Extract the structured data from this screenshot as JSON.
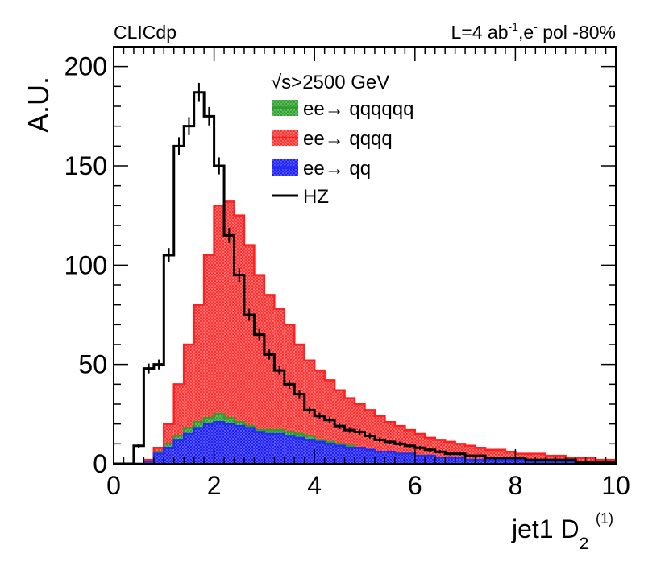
{
  "header": {
    "left": "CLICdp",
    "right_prefix": "L=4 ab",
    "right_lumi_sup": "-1",
    "right_mid": ",e",
    "right_e_sup": "-",
    "right_suffix": " pol -80%"
  },
  "legend": {
    "title_root": "√s",
    "title_rest": ">2500 GeV",
    "entries": [
      {
        "label": "ee→ qqqqqq",
        "color": "#2ca02c"
      },
      {
        "label": "ee→ qqqq",
        "color": "#ff2020"
      },
      {
        "label": "ee→ qq",
        "color": "#1f2ff0"
      },
      {
        "label": "HZ",
        "color": "#000000"
      }
    ]
  },
  "axes": {
    "ylabel": "A.U.",
    "xlabel_main": "jet1 D",
    "xlabel_sub": "2",
    "xlabel_sup": "(1)",
    "x_ticks": [
      "0",
      "2",
      "4",
      "6",
      "8",
      "10"
    ],
    "y_ticks": [
      "0",
      "50",
      "100",
      "150",
      "200"
    ]
  },
  "chart_data": {
    "type": "histogram",
    "title": "",
    "xlabel": "jet1 D2(1)",
    "ylabel": "A.U.",
    "xlim": [
      0,
      10
    ],
    "ylim": [
      0,
      210
    ],
    "bin_width": 0.2,
    "x_start": 0,
    "colors": {
      "qqqqqq": "#2ca02c",
      "qqqq": "#ff2020",
      "qq": "#1f2ff0",
      "HZ": "#000000"
    },
    "series": [
      {
        "name": "ee→ qq",
        "role": "stack-bottom",
        "values": [
          0,
          0,
          0,
          1,
          5,
          8,
          12,
          15,
          18,
          20,
          21,
          20,
          19,
          18,
          16,
          15,
          15,
          14,
          13,
          12,
          11,
          10,
          9,
          8,
          8,
          7,
          6,
          6,
          5,
          5,
          4,
          4,
          3,
          3,
          3,
          2,
          2,
          2,
          2,
          2,
          2,
          1,
          1,
          1,
          1,
          1,
          1,
          1,
          1,
          1
        ]
      },
      {
        "name": "ee→ qqqq",
        "role": "stack-total",
        "values": [
          0,
          0,
          0,
          2,
          8,
          20,
          40,
          60,
          80,
          105,
          130,
          132,
          125,
          110,
          95,
          85,
          78,
          70,
          60,
          52,
          47,
          42,
          37,
          33,
          30,
          27,
          24,
          21,
          19,
          17,
          15,
          13,
          12,
          11,
          10,
          9,
          8,
          7,
          7,
          6,
          5,
          5,
          5,
          4,
          4,
          3,
          3,
          3,
          2,
          2
        ]
      },
      {
        "name": "ee→ qqqqqq",
        "role": "stack-middle-top",
        "values": [
          0,
          0,
          0,
          1,
          6,
          10,
          14,
          18,
          21,
          23,
          25,
          23,
          21,
          19,
          17,
          17,
          17,
          16,
          15,
          14,
          12,
          11,
          10,
          9,
          8,
          7,
          6,
          6,
          5,
          5,
          4,
          4,
          3,
          3,
          3,
          2,
          2,
          2,
          2,
          2,
          2,
          1,
          1,
          1,
          1,
          1,
          1,
          1,
          1,
          1
        ]
      },
      {
        "name": "HZ",
        "role": "line",
        "values": [
          0,
          0,
          9,
          48,
          50,
          105,
          160,
          170,
          187,
          175,
          150,
          115,
          95,
          75,
          65,
          55,
          47,
          40,
          35,
          27,
          24,
          22,
          19,
          17,
          16,
          14,
          12,
          11,
          10,
          9,
          8,
          7,
          6,
          5,
          5,
          4,
          4,
          3,
          3,
          3,
          3,
          2,
          2,
          2,
          2,
          2,
          1,
          1,
          1,
          1
        ]
      }
    ]
  }
}
